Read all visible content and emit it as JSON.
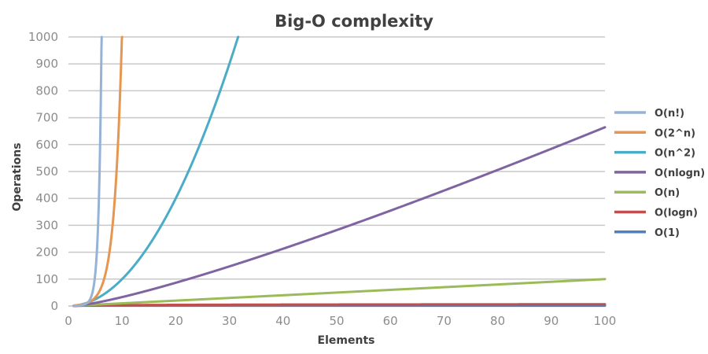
{
  "chart_data": {
    "type": "line",
    "title": "Big-O complexity",
    "xlabel": "Elements",
    "ylabel": "Operations",
    "xlim": [
      0,
      100
    ],
    "ylim": [
      0,
      1000
    ],
    "x_ticks": [
      0,
      10,
      20,
      30,
      40,
      50,
      60,
      70,
      80,
      90,
      100
    ],
    "y_ticks": [
      0,
      100,
      200,
      300,
      400,
      500,
      600,
      700,
      800,
      900,
      1000
    ],
    "grid": "horizontal",
    "legend_position": "right",
    "series": [
      {
        "name": "O(n!)",
        "color": "#95b3d7",
        "function": "factorial"
      },
      {
        "name": "O(2^n)",
        "color": "#e69650",
        "function": "exponential"
      },
      {
        "name": "O(n^2)",
        "color": "#4aacc5",
        "function": "quadratic"
      },
      {
        "name": "O(nlogn)",
        "color": "#8064a2",
        "function": "linearithmic"
      },
      {
        "name": "O(n)",
        "color": "#9bbb59",
        "function": "linear"
      },
      {
        "name": "O(logn)",
        "color": "#c0504d",
        "function": "logarithmic"
      },
      {
        "name": "O(1)",
        "color": "#4f81bd",
        "function": "constant"
      }
    ]
  }
}
